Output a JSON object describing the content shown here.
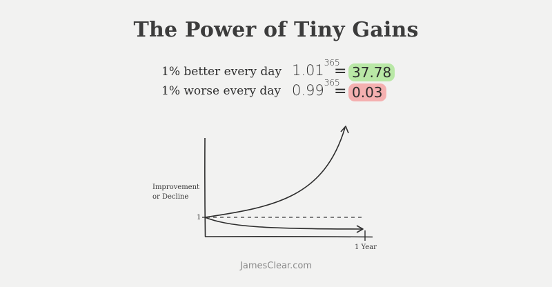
{
  "title": "The Power of Tiny Gains",
  "equations": [
    {
      "label": "1% better every day",
      "base": "1.01",
      "exponent": "365",
      "equals": "=",
      "result": "37.78",
      "highlight": "#b9e8a6"
    },
    {
      "label": "1% worse every day",
      "base": "0.99",
      "exponent": "365",
      "equals": "=",
      "result": "0.03",
      "highlight": "#f4b0b0"
    }
  ],
  "graph": {
    "y_axis_label_line1": "Improvement",
    "y_axis_label_line2": "or Decline",
    "baseline_tick_label": "1",
    "x_end_label": "1 Year"
  },
  "footer": "JamesClear.com"
}
